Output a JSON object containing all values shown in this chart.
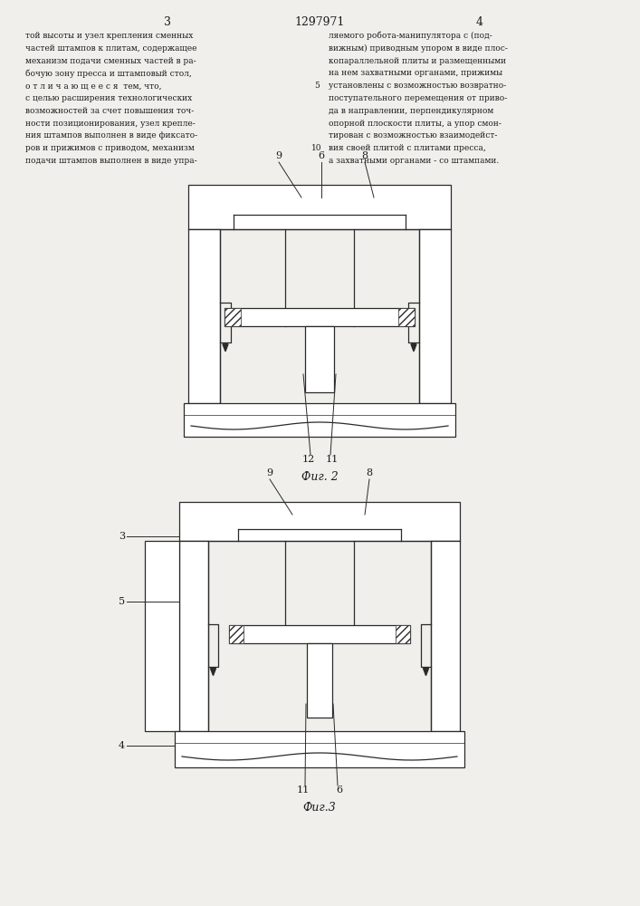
{
  "page_num_left": "3",
  "page_num_center": "1297971",
  "page_num_right": "4",
  "text_left": [
    "той высоты и узел крепления сменных",
    "частей штампов к плитам, содержащее",
    "механизм подачи сменных частей в ра-",
    "бочую зону пресса и штамповый стол,",
    "о т л и ч а ю щ е е с я  тем, что,",
    "с целью расширения технологических",
    "возможностей за счет повышения точ-",
    "ности позиционирования, узел крепле-",
    "ния штампов выполнен в виде фиксато-",
    "ров и прижимов с приводом, механизм",
    "подачи штампов выполнен в виде упра-"
  ],
  "text_right": [
    "ляемого робота-манипулятора с (под-",
    "вижным) приводным упором в виде плос-",
    "копараллельной плиты и размещенными",
    "на нем захватными органами, прижимы",
    "установлены с возможностью возвратно-",
    "поступательного перемещения от приво-",
    "да в направлении, перпендикулярном",
    "опорной плоскости плиты, а упор смон-",
    "тирован с возможностью взаимодейст-",
    "вия своей плитой с плитами пресса,",
    "а захватными органами - со штампами."
  ],
  "line_numbers_text": [
    "5",
    "10"
  ],
  "line_number_row": [
    4,
    9
  ],
  "fig2_label": "Фиг. 2",
  "fig3_label": "Фиг.3",
  "bg_color": "#f0efeb",
  "line_color": "#2a2a2a",
  "text_color": "#1a1a1a"
}
